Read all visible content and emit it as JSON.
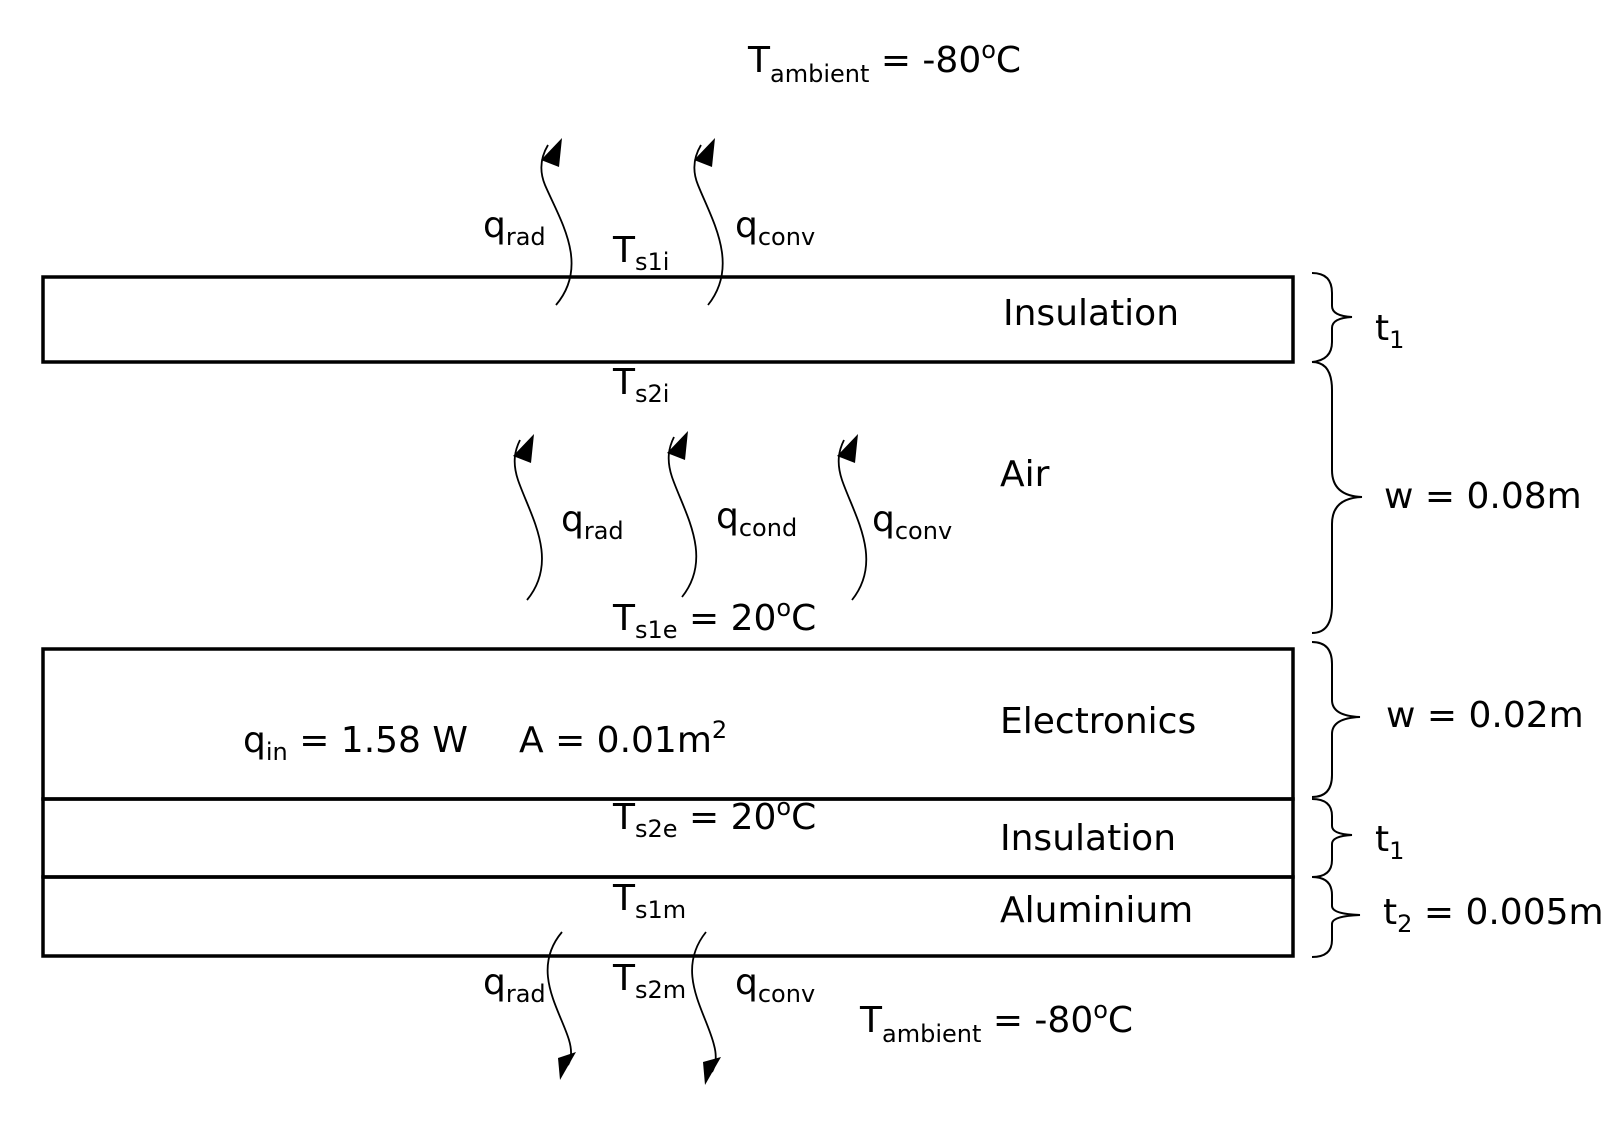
{
  "ambient": {
    "top": {
      "base": "T",
      "sub": "ambient",
      "rest": " = -80",
      "sup": "o",
      "tail": "C"
    },
    "bottom": {
      "base": "T",
      "sub": "ambient",
      "rest": " = -80",
      "sup": "o",
      "tail": "C"
    }
  },
  "layers": {
    "insulation_top": "Insulation",
    "air": "Air",
    "electronics": "Electronics",
    "insulation_bottom": "Insulation",
    "aluminium": "Aluminium"
  },
  "heat_labels": {
    "top_rad": {
      "base": "q",
      "sub": "rad"
    },
    "top_conv": {
      "base": "q",
      "sub": "conv"
    },
    "air_rad": {
      "base": "q",
      "sub": "rad"
    },
    "air_cond": {
      "base": "q",
      "sub": "cond"
    },
    "air_conv": {
      "base": "q",
      "sub": "conv"
    },
    "bottom_rad": {
      "base": "q",
      "sub": "rad"
    },
    "bottom_conv": {
      "base": "q",
      "sub": "conv"
    }
  },
  "surface_temps": {
    "ts1i": {
      "base": "T",
      "sub": "s1i"
    },
    "ts2i": {
      "base": "T",
      "sub": "s2i"
    },
    "ts1e": {
      "base": "T",
      "sub": "s1e",
      "rest": " = 20",
      "sup": "o",
      "tail": "C"
    },
    "ts2e": {
      "base": "T",
      "sub": "s2e",
      "rest": " = 20",
      "sup": "o",
      "tail": "C"
    },
    "ts1m": {
      "base": "T",
      "sub": "s1m"
    },
    "ts2m": {
      "base": "T",
      "sub": "s2m"
    }
  },
  "electronics_info": {
    "qin": {
      "base": "q",
      "sub": "in",
      "rest": " = 1.58 W"
    },
    "area": {
      "base": "A = 0.01m",
      "sup": "2"
    }
  },
  "dimensions": {
    "t1_top": {
      "base": "t",
      "sub": "1"
    },
    "w_air": "w = 0.08m",
    "w_elec": "w = 0.02m",
    "t1_bottom": {
      "base": "t",
      "sub": "1"
    },
    "t2": {
      "base": "t",
      "sub": "2",
      "rest": " = 0.005m"
    }
  }
}
